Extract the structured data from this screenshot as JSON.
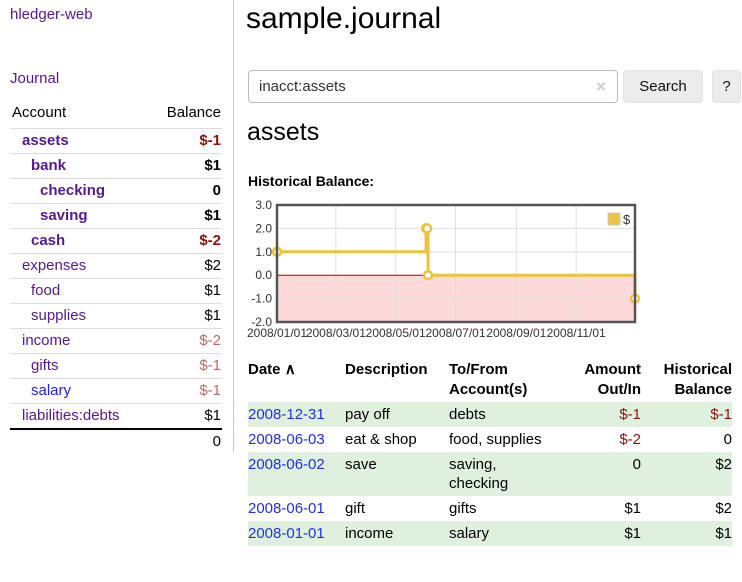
{
  "app": {
    "title": "hledger-web"
  },
  "sidebar": {
    "journal_link": "Journal",
    "table": {
      "account_header": "Account",
      "balance_header": "Balance",
      "rows": [
        {
          "name": "assets",
          "indent": 1,
          "bold": true,
          "link_color": "purple",
          "balance": "$-1",
          "balance_class": "negstrong"
        },
        {
          "name": "bank",
          "indent": 2,
          "bold": true,
          "link_color": "purple",
          "balance": "$1",
          "balance_class": "pos"
        },
        {
          "name": "checking",
          "indent": 3,
          "bold": true,
          "link_color": "purple",
          "balance": "0",
          "balance_class": "pos"
        },
        {
          "name": "saving",
          "indent": 3,
          "bold": true,
          "link_color": "purple",
          "balance": "$1",
          "balance_class": "pos"
        },
        {
          "name": "cash",
          "indent": 2,
          "bold": true,
          "link_color": "purple",
          "balance": "$-2",
          "balance_class": "negstrong"
        },
        {
          "name": "expenses",
          "indent": 1,
          "bold": false,
          "link_color": "purple",
          "balance": "$2",
          "balance_class": "pos"
        },
        {
          "name": "food",
          "indent": 2,
          "bold": false,
          "link_color": "purple",
          "balance": "$1",
          "balance_class": "pos"
        },
        {
          "name": "supplies",
          "indent": 2,
          "bold": false,
          "link_color": "purple",
          "balance": "$1",
          "balance_class": "pos"
        },
        {
          "name": "income",
          "indent": 1,
          "bold": false,
          "link_color": "purple",
          "balance": "$-2",
          "balance_class": "negsoft"
        },
        {
          "name": "gifts",
          "indent": 2,
          "bold": false,
          "link_color": "purple",
          "balance": "$-1",
          "balance_class": "negsoft"
        },
        {
          "name": "salary",
          "indent": 2,
          "bold": false,
          "link_color": "blue",
          "balance": "$-1",
          "balance_class": "negsoft"
        },
        {
          "name": "liabilities:debts",
          "indent": 1,
          "bold": false,
          "link_color": "purple",
          "balance": "$1",
          "balance_class": "pos"
        }
      ],
      "total": "0"
    }
  },
  "header": {
    "title": "sample.journal"
  },
  "search": {
    "value": "inacct:assets",
    "clear_icon": "×",
    "button_label": "Search",
    "help_label": "?"
  },
  "account_page": {
    "heading": "assets",
    "chart_label": "Historical Balance:"
  },
  "chart_data": {
    "type": "line",
    "step": true,
    "title": "Historical Balance",
    "legend": "$",
    "legend_position": "top-right",
    "series": [
      {
        "name": "$",
        "color": "#edc240",
        "points": [
          {
            "date": "2008-01-01",
            "day": 0,
            "value": 1
          },
          {
            "date": "2008-06-01",
            "day": 152,
            "value": 2
          },
          {
            "date": "2008-06-02",
            "day": 153,
            "value": 2
          },
          {
            "date": "2008-06-03",
            "day": 154,
            "value": 0
          },
          {
            "date": "2008-12-31",
            "day": 365,
            "value": -1
          }
        ]
      }
    ],
    "ylim": [
      -2,
      3
    ],
    "yticks": [
      "3.0",
      "2.0",
      "1.0",
      "0.0",
      "-1.0",
      "-2.0"
    ],
    "x_range_days": [
      0,
      365
    ],
    "xticks": [
      {
        "label": "2008/01/01",
        "day": 0
      },
      {
        "label": "2008/03/01",
        "day": 60
      },
      {
        "label": "2008/05/01",
        "day": 121
      },
      {
        "label": "2008/07/01",
        "day": 182
      },
      {
        "label": "2008/09/01",
        "day": 244
      },
      {
        "label": "2008/11/01",
        "day": 305
      }
    ],
    "grid": true,
    "grid_color": "#e0e0e0",
    "negative_fill": "#fcdada",
    "zero_line_color": "#aa0000",
    "border_color": "#545454"
  },
  "register": {
    "headers": {
      "date": "Date",
      "sort_arrow": "∧",
      "description": "Description",
      "tofrom": "To/From Account(s)",
      "amount": "Amount Out/In",
      "balance": "Historical Balance"
    },
    "rows": [
      {
        "date": "2008-12-31",
        "description": "pay off",
        "accounts": "debts",
        "amount": "$-1",
        "amount_negative": true,
        "balance": "$-1",
        "balance_negative": true,
        "striped": true
      },
      {
        "date": "2008-06-03",
        "description": "eat & shop",
        "accounts": "food, supplies",
        "amount": "$-2",
        "amount_negative": true,
        "balance": "0",
        "balance_negative": false,
        "striped": false
      },
      {
        "date": "2008-06-02",
        "description": "save",
        "accounts": "saving, checking",
        "amount": "0",
        "amount_negative": false,
        "balance": "$2",
        "balance_negative": false,
        "striped": true
      },
      {
        "date": "2008-06-01",
        "description": "gift",
        "accounts": "gifts",
        "amount": "$1",
        "amount_negative": false,
        "balance": "$2",
        "balance_negative": false,
        "striped": false
      },
      {
        "date": "2008-01-01",
        "description": "income",
        "accounts": "salary",
        "amount": "$1",
        "amount_negative": false,
        "balance": "$1",
        "balance_negative": false,
        "striped": true
      }
    ]
  }
}
